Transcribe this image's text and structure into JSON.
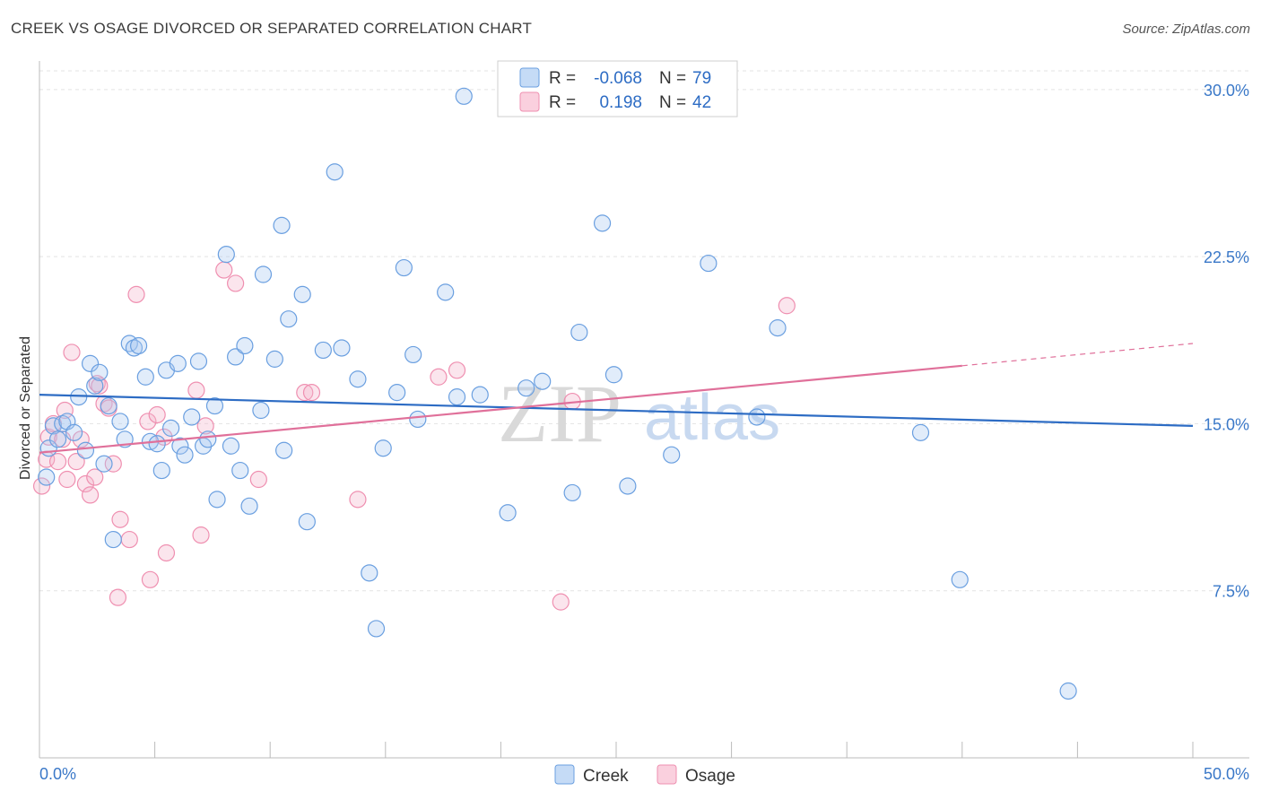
{
  "title": "CREEK VS OSAGE DIVORCED OR SEPARATED CORRELATION CHART",
  "source": "Source: ZipAtlas.com",
  "watermark": {
    "zip": "ZIP",
    "atlas": "atlas"
  },
  "legend_top": [
    {
      "r_label": "R =",
      "r_value": "-0.068",
      "n_label": "N =",
      "n_value": "79"
    },
    {
      "r_label": "R =",
      "r_value": "0.198",
      "n_label": "N =",
      "n_value": "42"
    }
  ],
  "chart_data": {
    "type": "scatter",
    "title": "CREEK VS OSAGE DIVORCED OR SEPARATED CORRELATION CHART",
    "xlabel": "",
    "ylabel": "Divorced or Separated",
    "xlim": [
      0,
      50
    ],
    "ylim": [
      0,
      31
    ],
    "x_tick_labels": [
      "0.0%",
      "50.0%"
    ],
    "y_ticks": [
      7.5,
      15.0,
      22.5,
      30.0
    ],
    "y_tick_labels": [
      "7.5%",
      "15.0%",
      "22.5%",
      "30.0%"
    ],
    "grid": true,
    "legend_position": "top-center",
    "colors": {
      "creek": "#6a9fe0",
      "creek_line": "#2d6cc4",
      "osage": "#ef8fb0",
      "osage_line": "#e0709a"
    },
    "series": [
      {
        "name": "Creek",
        "r": -0.068,
        "n": 79,
        "trend": {
          "x0": 0,
          "y0": 16.3,
          "x1": 50,
          "y1": 14.9
        },
        "points": [
          [
            0.3,
            12.6
          ],
          [
            0.4,
            13.9
          ],
          [
            0.6,
            14.9
          ],
          [
            0.8,
            14.3
          ],
          [
            1.0,
            15.0
          ],
          [
            1.2,
            15.1
          ],
          [
            1.5,
            14.6
          ],
          [
            1.7,
            16.2
          ],
          [
            2.0,
            13.8
          ],
          [
            2.2,
            17.7
          ],
          [
            2.4,
            16.7
          ],
          [
            2.6,
            17.3
          ],
          [
            2.8,
            13.2
          ],
          [
            3.0,
            15.8
          ],
          [
            3.2,
            9.8
          ],
          [
            3.5,
            15.1
          ],
          [
            3.7,
            14.3
          ],
          [
            3.9,
            18.6
          ],
          [
            4.1,
            18.4
          ],
          [
            4.3,
            18.5
          ],
          [
            4.6,
            17.1
          ],
          [
            4.8,
            14.2
          ],
          [
            5.1,
            14.1
          ],
          [
            5.3,
            12.9
          ],
          [
            5.5,
            17.4
          ],
          [
            5.7,
            14.8
          ],
          [
            6.0,
            17.7
          ],
          [
            6.1,
            14.0
          ],
          [
            6.3,
            13.6
          ],
          [
            6.6,
            15.3
          ],
          [
            6.9,
            17.8
          ],
          [
            7.1,
            14.0
          ],
          [
            7.3,
            14.3
          ],
          [
            7.6,
            15.8
          ],
          [
            7.7,
            11.6
          ],
          [
            8.1,
            22.6
          ],
          [
            8.3,
            14.0
          ],
          [
            8.5,
            18.0
          ],
          [
            8.7,
            12.9
          ],
          [
            8.9,
            18.5
          ],
          [
            9.1,
            11.3
          ],
          [
            9.6,
            15.6
          ],
          [
            9.7,
            21.7
          ],
          [
            10.2,
            17.9
          ],
          [
            10.5,
            23.9
          ],
          [
            10.6,
            13.8
          ],
          [
            10.8,
            19.7
          ],
          [
            11.4,
            20.8
          ],
          [
            11.6,
            10.6
          ],
          [
            12.3,
            18.3
          ],
          [
            12.8,
            26.3
          ],
          [
            13.1,
            18.4
          ],
          [
            13.8,
            17.0
          ],
          [
            14.3,
            8.3
          ],
          [
            14.6,
            5.8
          ],
          [
            14.9,
            13.9
          ],
          [
            15.5,
            16.4
          ],
          [
            15.8,
            22.0
          ],
          [
            16.2,
            18.1
          ],
          [
            16.4,
            15.2
          ],
          [
            17.6,
            20.9
          ],
          [
            18.1,
            16.2
          ],
          [
            18.4,
            29.7
          ],
          [
            19.1,
            16.3
          ],
          [
            20.3,
            11.0
          ],
          [
            21.1,
            16.6
          ],
          [
            21.8,
            16.9
          ],
          [
            23.1,
            11.9
          ],
          [
            23.4,
            19.1
          ],
          [
            24.4,
            24.0
          ],
          [
            24.9,
            17.2
          ],
          [
            25.5,
            12.2
          ],
          [
            27.4,
            13.6
          ],
          [
            29.0,
            22.2
          ],
          [
            31.1,
            15.3
          ],
          [
            32.0,
            19.3
          ],
          [
            38.2,
            14.6
          ],
          [
            39.9,
            8.0
          ],
          [
            44.6,
            3.0
          ]
        ]
      },
      {
        "name": "Osage",
        "r": 0.198,
        "n": 42,
        "trend": {
          "x0": 0,
          "y0": 13.7,
          "x1": 40,
          "y1": 17.6,
          "dash_to_x": 50,
          "dash_to_y": 18.6
        },
        "points": [
          [
            0.1,
            12.2
          ],
          [
            0.3,
            13.4
          ],
          [
            0.4,
            14.4
          ],
          [
            0.6,
            15.0
          ],
          [
            0.8,
            13.3
          ],
          [
            1.0,
            14.3
          ],
          [
            1.1,
            15.6
          ],
          [
            1.2,
            12.5
          ],
          [
            1.4,
            18.2
          ],
          [
            1.6,
            13.3
          ],
          [
            1.8,
            14.3
          ],
          [
            2.0,
            12.3
          ],
          [
            2.2,
            11.8
          ],
          [
            2.4,
            12.6
          ],
          [
            2.5,
            16.8
          ],
          [
            2.6,
            16.7
          ],
          [
            2.8,
            15.9
          ],
          [
            3.0,
            15.7
          ],
          [
            3.2,
            13.2
          ],
          [
            3.4,
            7.2
          ],
          [
            3.5,
            10.7
          ],
          [
            3.9,
            9.8
          ],
          [
            4.2,
            20.8
          ],
          [
            4.7,
            15.1
          ],
          [
            4.8,
            8.0
          ],
          [
            5.1,
            15.4
          ],
          [
            5.4,
            14.4
          ],
          [
            5.5,
            9.2
          ],
          [
            6.8,
            16.5
          ],
          [
            7.0,
            10.0
          ],
          [
            7.2,
            14.9
          ],
          [
            8.0,
            21.9
          ],
          [
            8.5,
            21.3
          ],
          [
            9.5,
            12.5
          ],
          [
            11.5,
            16.4
          ],
          [
            11.8,
            16.4
          ],
          [
            13.8,
            11.6
          ],
          [
            17.3,
            17.1
          ],
          [
            18.1,
            17.4
          ],
          [
            22.6,
            7.0
          ],
          [
            23.1,
            16.0
          ],
          [
            32.4,
            20.3
          ]
        ]
      }
    ]
  },
  "bottom_legend": [
    "Creek",
    "Osage"
  ]
}
